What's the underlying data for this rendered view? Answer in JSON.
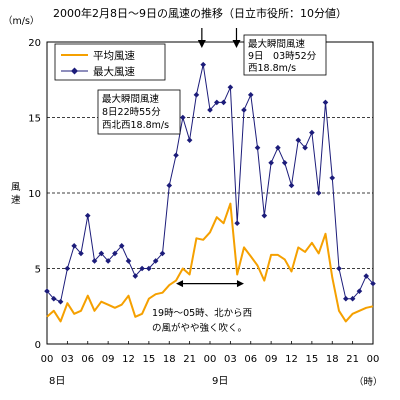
{
  "chart_data": {
    "type": "line",
    "title": "2000年2月8日～9日の風速の推移（日立市役所：10分値）",
    "ylabel": "風速",
    "yunit": "（m/s）",
    "xunit": "（時）",
    "ylim": [
      0,
      20
    ],
    "y_ticks": [
      "0",
      "5",
      "10",
      "15",
      "20"
    ],
    "grid_y": [
      5,
      10,
      15
    ],
    "xlim": [
      0,
      48
    ],
    "x_ticks": [
      "00",
      "03",
      "06",
      "09",
      "12",
      "15",
      "18",
      "21",
      "00",
      "03",
      "06",
      "09",
      "12",
      "15",
      "18",
      "21",
      "00"
    ],
    "day_labels": [
      {
        "text": "8日",
        "at_hour": 1.5
      },
      {
        "text": "9日",
        "at_hour": 25.5
      }
    ],
    "legend": {
      "position": "top-left"
    },
    "series": [
      {
        "name": "平均風速",
        "color": "#f5a000",
        "marker": "none",
        "x": [
          0,
          1,
          2,
          3,
          4,
          5,
          6,
          7,
          8,
          9,
          10,
          11,
          12,
          13,
          14,
          15,
          16,
          17,
          18,
          19,
          20,
          21,
          22,
          23,
          24,
          25,
          26,
          27,
          28,
          29,
          30,
          31,
          32,
          33,
          34,
          35,
          36,
          37,
          38,
          39,
          40,
          41,
          42,
          43,
          44,
          45,
          46,
          47,
          48
        ],
        "y": [
          1.8,
          2.2,
          1.5,
          2.7,
          2.0,
          2.2,
          3.2,
          2.2,
          2.8,
          2.6,
          2.4,
          2.6,
          3.2,
          1.8,
          2.0,
          3.0,
          3.3,
          3.4,
          3.9,
          4.2,
          5.0,
          4.6,
          7.0,
          6.9,
          7.4,
          8.4,
          8.0,
          9.3,
          4.6,
          6.4,
          5.8,
          5.2,
          4.2,
          5.9,
          5.9,
          5.6,
          4.8,
          6.4,
          6.1,
          6.7,
          6.0,
          7.3,
          4.4,
          2.2,
          1.5,
          2.0,
          2.2,
          2.4,
          2.5
        ]
      },
      {
        "name": "最大風速",
        "color": "#1c1c7a",
        "marker": "diamond",
        "x": [
          0,
          1,
          2,
          3,
          4,
          5,
          6,
          7,
          8,
          9,
          10,
          11,
          12,
          13,
          14,
          15,
          16,
          17,
          18,
          19,
          20,
          21,
          22,
          23,
          24,
          25,
          26,
          27,
          28,
          29,
          30,
          31,
          32,
          33,
          34,
          35,
          36,
          37,
          38,
          39,
          40,
          41,
          42,
          43,
          44,
          45,
          46,
          47,
          48
        ],
        "y": [
          3.5,
          3.0,
          2.8,
          5.0,
          6.5,
          6.0,
          8.5,
          5.5,
          6.0,
          5.5,
          6.0,
          6.5,
          5.5,
          4.5,
          5.0,
          5.0,
          5.5,
          6.0,
          10.5,
          12.5,
          15.0,
          13.5,
          16.5,
          18.5,
          15.5,
          16.0,
          16.0,
          17.0,
          8.0,
          15.5,
          16.5,
          13.0,
          8.5,
          12.0,
          13.0,
          12.0,
          10.5,
          13.5,
          13.0,
          14.0,
          10.0,
          16.0,
          11.0,
          5.0,
          3.0,
          3.0,
          3.5,
          4.5,
          4.0
        ]
      }
    ],
    "arrows_down_at_hour": [
      22.8,
      27.9
    ],
    "annotations": [
      {
        "lines": [
          "最大瞬間風速",
          "9日　03時52分",
          "西18.8m/s"
        ]
      },
      {
        "lines": [
          "最大瞬間風速",
          "8日22時55分",
          "西北西18.8m/s"
        ]
      },
      {
        "lines": [
          "19時～05時、北から西",
          "の風がやや強く吹く。"
        ],
        "span_hours": [
          19,
          29
        ]
      }
    ]
  }
}
